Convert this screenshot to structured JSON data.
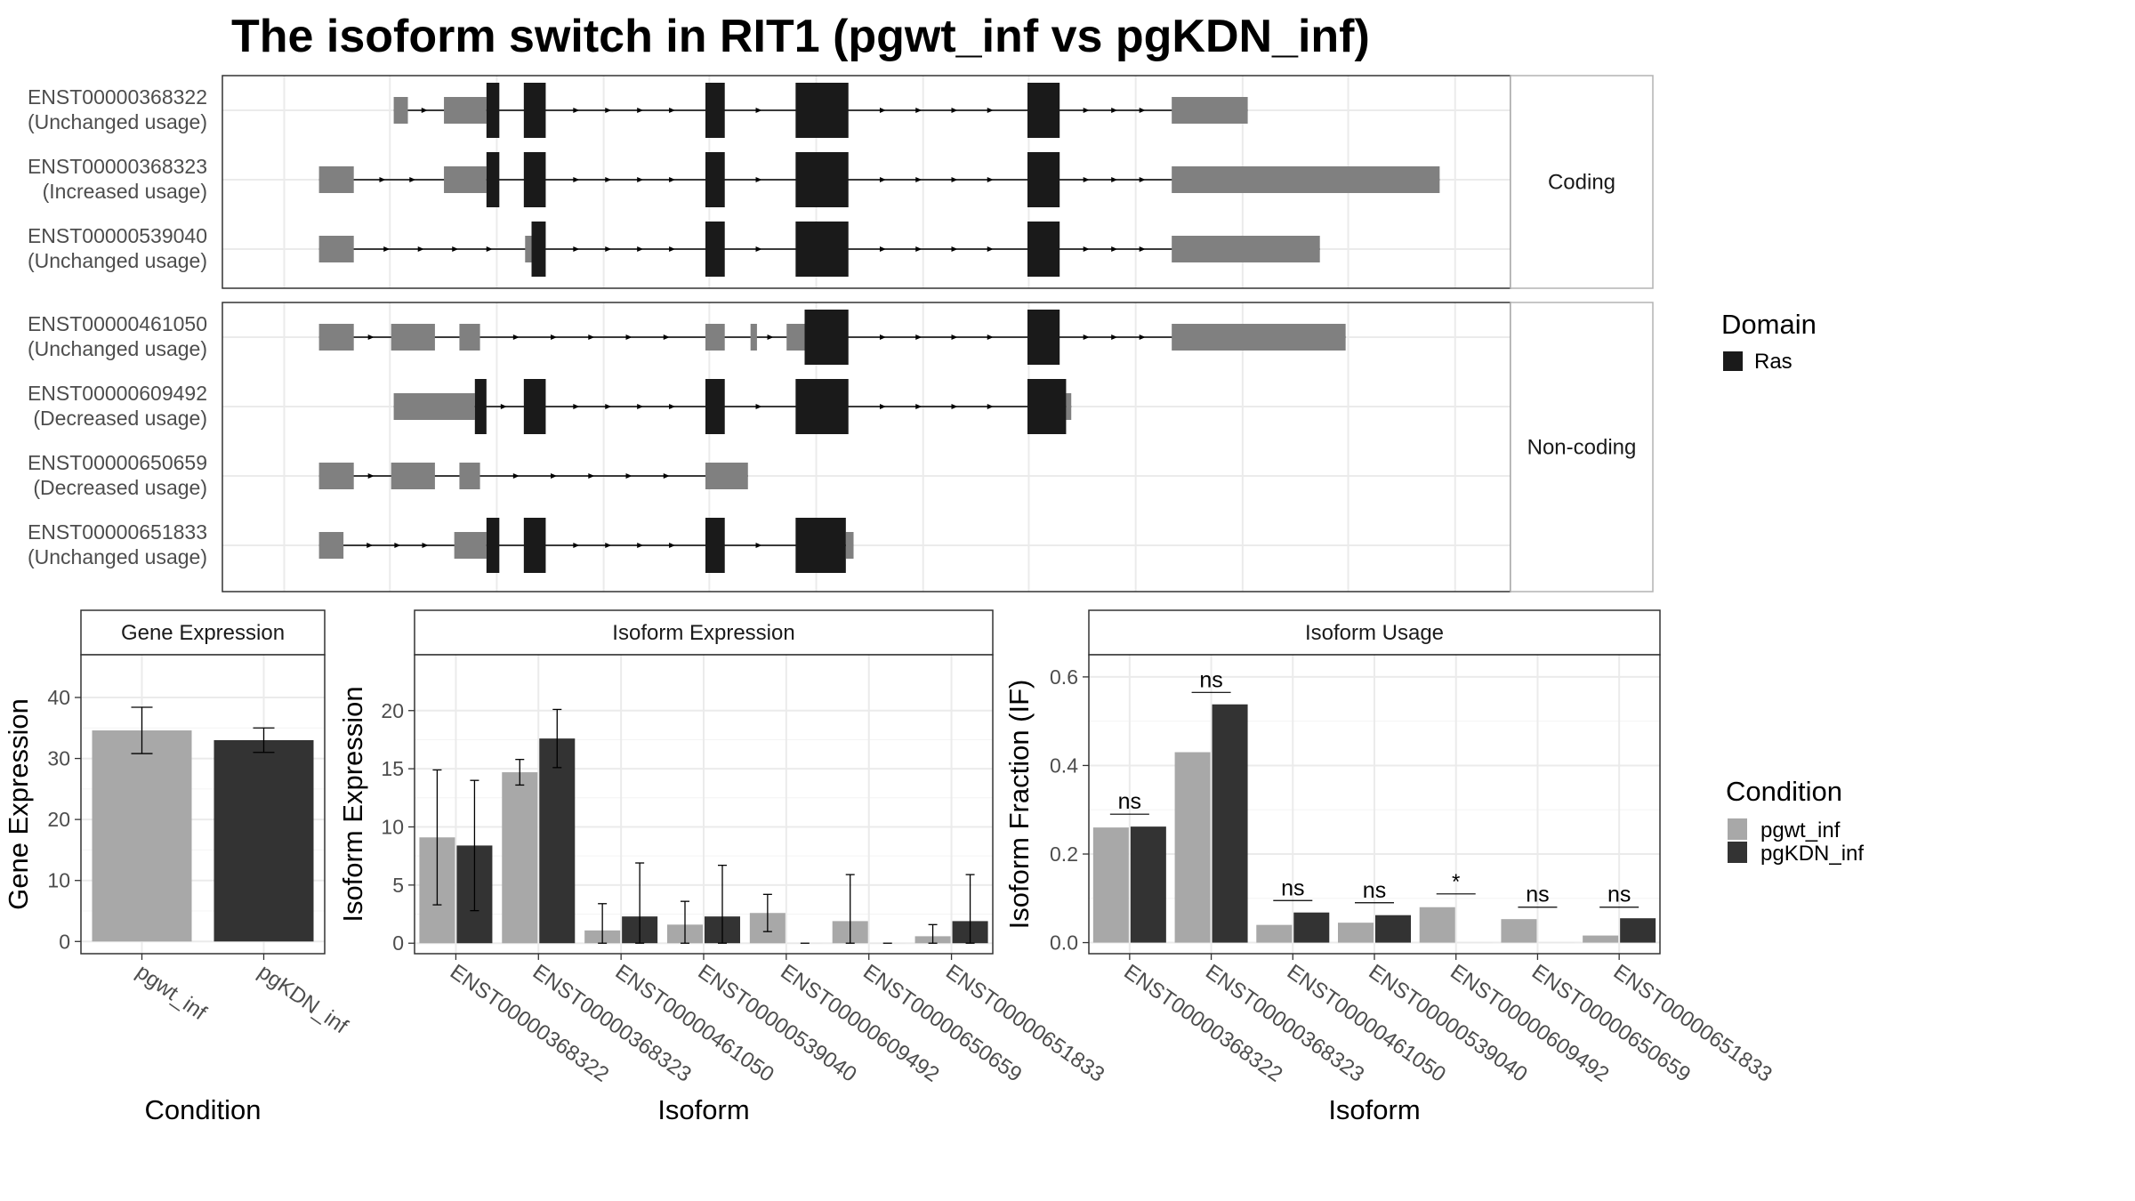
{
  "title": "The isoform switch in RIT1 (pgwt_inf vs pgKDN_inf)",
  "colors": {
    "domain": "#1a1a1a",
    "utr": "#808080",
    "pgwt_inf": "#a8a8a8",
    "pgKDN_inf": "#333333",
    "panel_border": "#333333",
    "strip_fill": "#ffffff",
    "grid": "#ebebeb"
  },
  "isoform_structure": {
    "x_range": [
      0,
      1000
    ],
    "grid_x": [
      48,
      130,
      213,
      296,
      378,
      461,
      544,
      626,
      709,
      792,
      874,
      957
    ],
    "groups": [
      {
        "label": "Coding",
        "transcripts": [
          {
            "id": "ENST00000368322",
            "usage": "(Unchanged usage)",
            "span": [
              133,
              796
            ],
            "utr": [
              [
                133,
                144
              ],
              [
                172,
                205
              ],
              [
                737,
                796
              ]
            ],
            "domain": [
              [
                205,
                215
              ],
              [
                234,
                251
              ],
              [
                375,
                390
              ],
              [
                445,
                486
              ],
              [
                625,
                650
              ]
            ]
          },
          {
            "id": "ENST00000368323",
            "usage": "(Increased usage)",
            "span": [
              75,
              945
            ],
            "utr": [
              [
                75,
                102
              ],
              [
                172,
                205
              ],
              [
                737,
                945
              ]
            ],
            "domain": [
              [
                205,
                215
              ],
              [
                234,
                251
              ],
              [
                375,
                390
              ],
              [
                445,
                486
              ],
              [
                625,
                650
              ]
            ]
          },
          {
            "id": "ENST00000539040",
            "usage": "(Unchanged usage)",
            "span": [
              75,
              852
            ],
            "utr": [
              [
                75,
                102
              ],
              [
                235,
                240
              ],
              [
                737,
                852
              ]
            ],
            "domain": [
              [
                240,
                251
              ],
              [
                375,
                390
              ],
              [
                445,
                486
              ],
              [
                625,
                650
              ]
            ]
          }
        ]
      },
      {
        "label": "Non-coding",
        "transcripts": [
          {
            "id": "ENST00000461050",
            "usage": "(Unchanged usage)",
            "span": [
              75,
              872
            ],
            "utr": [
              [
                75,
                102
              ],
              [
                131,
                165
              ],
              [
                184,
                200
              ],
              [
                375,
                390
              ],
              [
                410,
                415
              ],
              [
                438,
                452
              ],
              [
                737,
                872
              ]
            ],
            "domain": [
              [
                452,
                486
              ],
              [
                625,
                650
              ]
            ]
          },
          {
            "id": "ENST00000609492",
            "usage": "(Decreased usage)",
            "span": [
              133,
              659
            ],
            "utr": [
              [
                133,
                196
              ],
              [
                655,
                659
              ]
            ],
            "domain": [
              [
                196,
                205
              ],
              [
                234,
                251
              ],
              [
                375,
                390
              ],
              [
                445,
                486
              ],
              [
                625,
                655
              ]
            ]
          },
          {
            "id": "ENST00000650659",
            "usage": "(Decreased usage)",
            "span": [
              75,
              408
            ],
            "utr": [
              [
                75,
                102
              ],
              [
                131,
                165
              ],
              [
                184,
                200
              ],
              [
                375,
                408
              ]
            ],
            "domain": []
          },
          {
            "id": "ENST00000651833",
            "usage": "(Unchanged usage)",
            "span": [
              75,
              490
            ],
            "utr": [
              [
                75,
                94
              ],
              [
                180,
                205
              ],
              [
                484,
                490
              ]
            ],
            "domain": [
              [
                205,
                215
              ],
              [
                234,
                251
              ],
              [
                375,
                390
              ],
              [
                445,
                484
              ]
            ]
          }
        ]
      }
    ]
  },
  "legend_domain": {
    "title": "Domain",
    "items": [
      {
        "name": "Ras",
        "color": "#1a1a1a"
      }
    ]
  },
  "legend_condition": {
    "title": "Condition",
    "items": [
      {
        "name": "pgwt_inf",
        "color": "#a8a8a8"
      },
      {
        "name": "pgKDN_inf",
        "color": "#333333"
      }
    ]
  },
  "gene_expression": {
    "type": "bar",
    "strip": "Gene Expression",
    "xlabel": "Condition",
    "ylabel": "Gene Expression",
    "ylim": [
      -2,
      47
    ],
    "yticks": [
      0,
      10,
      20,
      30,
      40
    ],
    "categories": [
      "pgwt_inf",
      "pgKDN_inf"
    ],
    "values": [
      34.6,
      33.0
    ],
    "err_low": [
      30.8,
      31.0
    ],
    "err_high": [
      38.4,
      35.0
    ]
  },
  "isoform_expression": {
    "type": "bar",
    "strip": "Isoform Expression",
    "xlabel": "Isoform",
    "ylabel": "Isoform Expression",
    "ylim": [
      -0.9,
      24.8
    ],
    "yticks": [
      0,
      5,
      10,
      15,
      20
    ],
    "categories": [
      "ENST00000368322",
      "ENST00000368323",
      "ENST00000461050",
      "ENST00000539040",
      "ENST00000609492",
      "ENST00000650659",
      "ENST00000651833"
    ],
    "series": [
      {
        "name": "pgwt_inf",
        "values": [
          9.1,
          14.7,
          1.1,
          1.6,
          2.6,
          1.9,
          0.6
        ],
        "err_low": [
          3.3,
          13.6,
          0,
          0,
          1.0,
          0,
          0
        ],
        "err_high": [
          14.9,
          15.8,
          3.4,
          3.6,
          4.2,
          5.9,
          1.6
        ]
      },
      {
        "name": "pgKDN_inf",
        "values": [
          8.4,
          17.6,
          2.3,
          2.3,
          0,
          0,
          1.9
        ],
        "err_low": [
          2.8,
          15.1,
          0,
          0,
          0,
          0,
          0
        ],
        "err_high": [
          14.0,
          20.1,
          6.9,
          6.7,
          0,
          0,
          5.9
        ]
      }
    ]
  },
  "isoform_usage": {
    "type": "bar",
    "strip": "Isoform Usage",
    "xlabel": "Isoform",
    "ylabel": "Isoform Fraction (IF)",
    "ylim": [
      -0.025,
      0.65
    ],
    "yticks": [
      0.0,
      0.2,
      0.4,
      0.6
    ],
    "ytick_labels": [
      "0.0",
      "0.2",
      "0.4",
      "0.6"
    ],
    "categories": [
      "ENST00000368322",
      "ENST00000368323",
      "ENST00000461050",
      "ENST00000539040",
      "ENST00000609492",
      "ENST00000650659",
      "ENST00000651833"
    ],
    "series": [
      {
        "name": "pgwt_inf",
        "values": [
          0.26,
          0.43,
          0.04,
          0.045,
          0.08,
          0.053,
          0.016
        ]
      },
      {
        "name": "pgKDN_inf",
        "values": [
          0.262,
          0.538,
          0.068,
          0.062,
          0,
          0,
          0.055
        ]
      }
    ],
    "significance": [
      "ns",
      "ns",
      "ns",
      "ns",
      "*",
      "ns",
      "ns"
    ],
    "sig_y": [
      0.29,
      0.565,
      0.095,
      0.09,
      0.11,
      0.08,
      0.08
    ]
  }
}
